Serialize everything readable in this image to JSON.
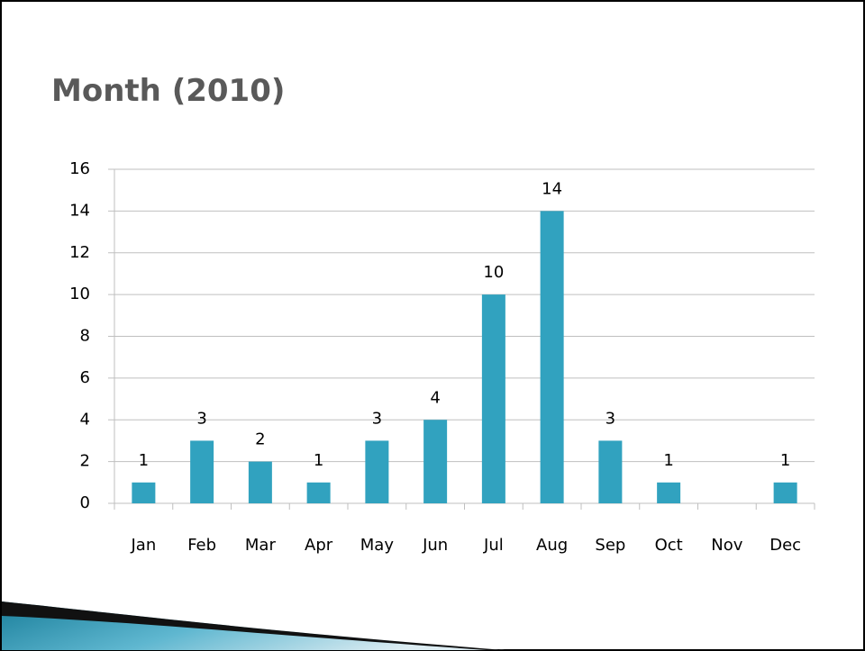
{
  "chart_data": {
    "type": "bar",
    "title": "Month (2010)",
    "categories": [
      "Jan",
      "Feb",
      "Mar",
      "Apr",
      "May",
      "Jun",
      "Jul",
      "Aug",
      "Sep",
      "Oct",
      "Nov",
      "Dec"
    ],
    "values": [
      1,
      3,
      2,
      1,
      3,
      4,
      10,
      14,
      3,
      1,
      null,
      1
    ],
    "color": "#31a2bf",
    "ylim": [
      0,
      16
    ],
    "yticks": [
      0,
      2,
      4,
      6,
      8,
      10,
      12,
      14,
      16
    ],
    "grid": true
  }
}
